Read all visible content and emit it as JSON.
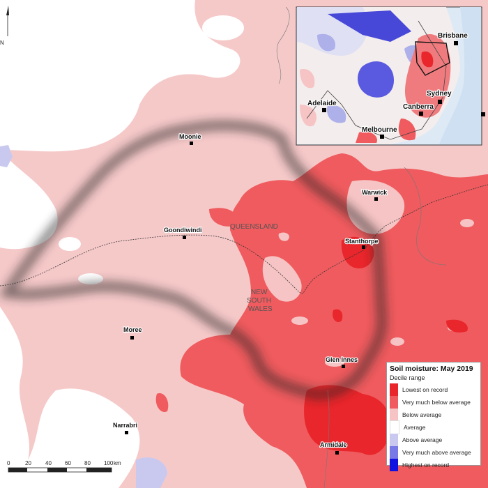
{
  "towns": [
    {
      "name": "Moonie"
    },
    {
      "name": "Warwick"
    },
    {
      "name": "Goondiwindi"
    },
    {
      "name": "Stanthorpe"
    },
    {
      "name": "Moree"
    },
    {
      "name": "Glen Innes"
    },
    {
      "name": "Narrabri"
    },
    {
      "name": "Armidale"
    }
  ],
  "state_labels": {
    "queensland": "QUEENSLAND",
    "nsw_line1": "NEW",
    "nsw_line2": "SOUTH",
    "nsw_line3": "WALES"
  },
  "inset_cities": {
    "brisbane": "Brisbane",
    "sydney": "Sydney",
    "canberra": "Canberra",
    "adelaide": "Adelaide",
    "melbourne": "Melbourne"
  },
  "north_arrow_label": "N",
  "scale_bar": {
    "ticks": [
      "0",
      "20",
      "40",
      "60",
      "80",
      "100"
    ],
    "unit": "km"
  },
  "legend": {
    "title": "Soil moisture: May 2019",
    "subtitle": "Decile range",
    "items": [
      {
        "label": "Lowest on record",
        "color": "#e8262b"
      },
      {
        "label": "Very much below average",
        "color": "#ef5b5e"
      },
      {
        "label": "Below average",
        "color": "#f6c4c4"
      },
      {
        "label": "Average",
        "color": "#ffffff"
      },
      {
        "label": "Above average",
        "color": "#c9c9f0"
      },
      {
        "label": "Very much above average",
        "color": "#7878e6"
      },
      {
        "label": "Highest on record",
        "color": "#1212e0"
      }
    ]
  }
}
